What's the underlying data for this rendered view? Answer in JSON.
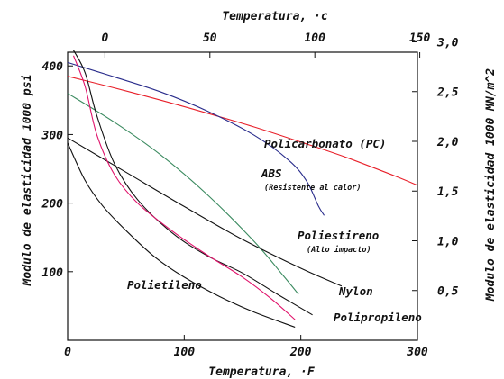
{
  "chart_data": {
    "type": "line",
    "title": "",
    "xlabel": "Temperatura, ·F",
    "x2label": "Temperatura, ·c",
    "ylabel": "Modulo de elasticidad 1000 psi",
    "y2label": "Modulo de elasticidad 1000 MN/m^2",
    "xlim": [
      0,
      300
    ],
    "ylim": [
      0,
      420
    ],
    "x2lim": [
      -17.8,
      148.9
    ],
    "y2lim": [
      0,
      2.896
    ],
    "xticks": [
      "0",
      "100",
      "200",
      "300"
    ],
    "yticks": [
      "100",
      "200",
      "300",
      "400"
    ],
    "x2ticks": [
      "0",
      "50",
      "100",
      "150"
    ],
    "y2ticks": [
      "0,5",
      "1,0",
      "1,5",
      "2,0",
      "2,5",
      "3,0"
    ],
    "grid": false,
    "series": [
      {
        "name": "Policarbonato (PC)",
        "color": "#e8202a",
        "points": [
          [
            0,
            385
          ],
          [
            40,
            368
          ],
          [
            80,
            350
          ],
          [
            120,
            331
          ],
          [
            160,
            311
          ],
          [
            200,
            289
          ],
          [
            240,
            266
          ],
          [
            280,
            240
          ],
          [
            300,
            226
          ]
        ]
      },
      {
        "name": "ABS",
        "sublabel": "(Resistente al calor)",
        "color": "#2a2d8c",
        "points": [
          [
            0,
            405
          ],
          [
            40,
            384
          ],
          [
            80,
            362
          ],
          [
            120,
            334
          ],
          [
            160,
            299
          ],
          [
            190,
            262
          ],
          [
            205,
            232
          ],
          [
            215,
            196
          ],
          [
            220,
            182
          ]
        ]
      },
      {
        "name": "Poliestireno",
        "sublabel": "(Alto impacto)",
        "color": "#3a8a5f",
        "points": [
          [
            0,
            360
          ],
          [
            40,
            318
          ],
          [
            80,
            270
          ],
          [
            120,
            212
          ],
          [
            160,
            144
          ],
          [
            185,
            94
          ],
          [
            198,
            67
          ]
        ]
      },
      {
        "name": "Nylon",
        "color": "#111111",
        "points": [
          [
            0,
            295
          ],
          [
            50,
            245
          ],
          [
            100,
            195
          ],
          [
            150,
            147
          ],
          [
            200,
            105
          ],
          [
            235,
            79
          ]
        ]
      },
      {
        "name": "Polipropileno",
        "color": "#111111",
        "points": [
          [
            5,
            423
          ],
          [
            15,
            390
          ],
          [
            25,
            328
          ],
          [
            40,
            258
          ],
          [
            60,
            205
          ],
          [
            90,
            156
          ],
          [
            120,
            123
          ],
          [
            150,
            98
          ],
          [
            180,
            67
          ],
          [
            210,
            37
          ]
        ]
      },
      {
        "name": "Polietileno",
        "color": "#111111",
        "points": [
          [
            0,
            288
          ],
          [
            15,
            233
          ],
          [
            30,
            196
          ],
          [
            50,
            160
          ],
          [
            75,
            121
          ],
          [
            100,
            92
          ],
          [
            130,
            64
          ],
          [
            160,
            41
          ],
          [
            195,
            19
          ]
        ]
      },
      {
        "name": "",
        "color": "#e0136b",
        "points": [
          [
            5,
            415
          ],
          [
            15,
            370
          ],
          [
            25,
            300
          ],
          [
            40,
            242
          ],
          [
            60,
            200
          ],
          [
            90,
            159
          ],
          [
            120,
            124
          ],
          [
            150,
            92
          ],
          [
            175,
            60
          ],
          [
            195,
            30
          ]
        ]
      }
    ]
  }
}
